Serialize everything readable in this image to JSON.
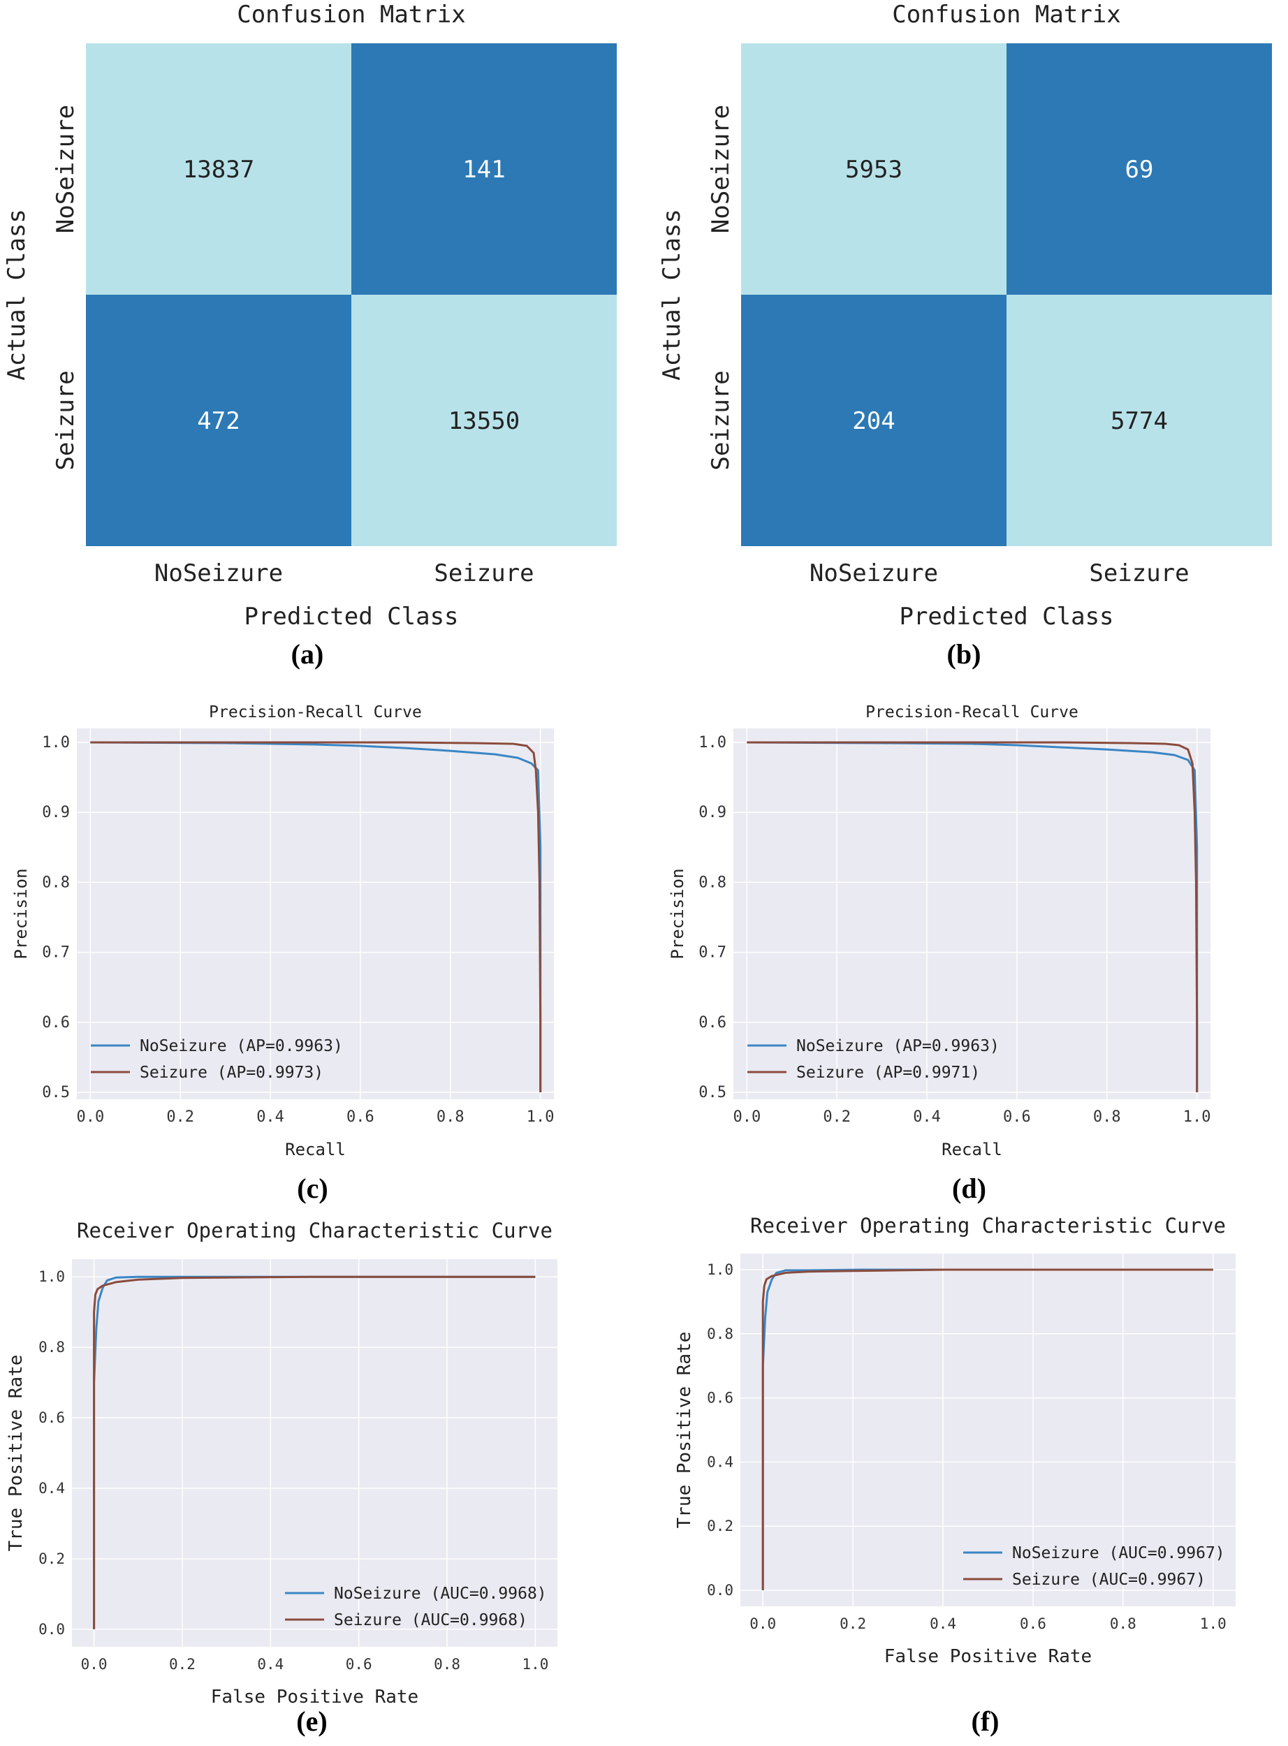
{
  "colors": {
    "cm_dark": "#2c79b5",
    "cm_light": "#b8e2e9",
    "plot_bg": "#eaeaf2",
    "grid": "#ffffff",
    "noseizure": "#3a86c4",
    "seizure": "#8a4b3c"
  },
  "chart_data": [
    {
      "id": "a",
      "type": "heatmap",
      "title": "Confusion Matrix",
      "xlabel": "Predicted Class",
      "ylabel": "Actual Class",
      "classes": [
        "NoSeizure",
        "Seizure"
      ],
      "matrix": [
        [
          13837,
          141
        ],
        [
          472,
          13550
        ]
      ],
      "panel_label": "(a)"
    },
    {
      "id": "b",
      "type": "heatmap",
      "title": "Confusion Matrix",
      "xlabel": "Predicted Class",
      "ylabel": "Actual Class",
      "classes": [
        "NoSeizure",
        "Seizure"
      ],
      "matrix": [
        [
          5953,
          69
        ],
        [
          204,
          5774
        ]
      ],
      "panel_label": "(b)"
    },
    {
      "id": "c",
      "type": "line",
      "title": "Precision-Recall Curve",
      "xlabel": "Recall",
      "ylabel": "Precision",
      "xlim": [
        -0.03,
        1.03
      ],
      "ylim": [
        0.49,
        1.02
      ],
      "xticks": [
        0.0,
        0.2,
        0.4,
        0.6,
        0.8,
        1.0
      ],
      "xtick_labels": [
        "0.0",
        "0.2",
        "0.4",
        "0.6",
        "0.8",
        "1.0"
      ],
      "yticks": [
        0.5,
        0.6,
        0.7,
        0.8,
        0.9,
        1.0
      ],
      "ytick_labels": [
        "0.5",
        "0.6",
        "0.7",
        "0.8",
        "0.9",
        "1.0"
      ],
      "legend_position": "lower-left",
      "series": [
        {
          "name": "NoSeizure (AP=0.9963)",
          "color_key": "noseizure",
          "x": [
            0.0,
            0.3,
            0.5,
            0.6,
            0.7,
            0.8,
            0.9,
            0.95,
            0.98,
            0.995,
            1.0,
            1.0,
            1.0
          ],
          "y": [
            1.0,
            0.999,
            0.997,
            0.995,
            0.992,
            0.988,
            0.983,
            0.978,
            0.97,
            0.96,
            0.85,
            0.7,
            0.5
          ]
        },
        {
          "name": "Seizure (AP=0.9973)",
          "color_key": "seizure",
          "x": [
            0.0,
            0.3,
            0.5,
            0.7,
            0.85,
            0.94,
            0.97,
            0.985,
            0.99,
            0.995,
            0.998,
            1.0,
            1.0
          ],
          "y": [
            1.0,
            1.0,
            1.0,
            1.0,
            0.999,
            0.998,
            0.995,
            0.985,
            0.96,
            0.9,
            0.8,
            0.6,
            0.5
          ]
        }
      ],
      "panel_label": "(c)"
    },
    {
      "id": "d",
      "type": "line",
      "title": "Precision-Recall Curve",
      "xlabel": "Recall",
      "ylabel": "Precision",
      "xlim": [
        -0.03,
        1.03
      ],
      "ylim": [
        0.49,
        1.02
      ],
      "xticks": [
        0.0,
        0.2,
        0.4,
        0.6,
        0.8,
        1.0
      ],
      "xtick_labels": [
        "0.0",
        "0.2",
        "0.4",
        "0.6",
        "0.8",
        "1.0"
      ],
      "yticks": [
        0.5,
        0.6,
        0.7,
        0.8,
        0.9,
        1.0
      ],
      "ytick_labels": [
        "0.5",
        "0.6",
        "0.7",
        "0.8",
        "0.9",
        "1.0"
      ],
      "legend_position": "lower-left",
      "series": [
        {
          "name": "NoSeizure (AP=0.9963)",
          "color_key": "noseizure",
          "x": [
            0.0,
            0.3,
            0.5,
            0.6,
            0.7,
            0.8,
            0.9,
            0.95,
            0.98,
            0.995,
            1.0,
            1.0,
            1.0
          ],
          "y": [
            1.0,
            0.999,
            0.998,
            0.996,
            0.993,
            0.99,
            0.986,
            0.982,
            0.975,
            0.96,
            0.85,
            0.7,
            0.5
          ]
        },
        {
          "name": "Seizure (AP=0.9971)",
          "color_key": "seizure",
          "x": [
            0.0,
            0.3,
            0.5,
            0.7,
            0.85,
            0.93,
            0.96,
            0.98,
            0.99,
            0.995,
            0.998,
            1.0,
            1.0
          ],
          "y": [
            1.0,
            1.0,
            1.0,
            1.0,
            0.999,
            0.998,
            0.996,
            0.99,
            0.97,
            0.9,
            0.8,
            0.6,
            0.5
          ]
        }
      ],
      "panel_label": "(d)"
    },
    {
      "id": "e",
      "type": "line",
      "title": "Receiver Operating Characteristic Curve",
      "xlabel": "False Positive Rate",
      "ylabel": "True Positive Rate",
      "xlim": [
        -0.05,
        1.05
      ],
      "ylim": [
        -0.05,
        1.05
      ],
      "xticks": [
        0.0,
        0.2,
        0.4,
        0.6,
        0.8,
        1.0
      ],
      "xtick_labels": [
        "0.0",
        "0.2",
        "0.4",
        "0.6",
        "0.8",
        "1.0"
      ],
      "yticks": [
        0.0,
        0.2,
        0.4,
        0.6,
        0.8,
        1.0
      ],
      "ytick_labels": [
        "0.0",
        "0.2",
        "0.4",
        "0.6",
        "0.8",
        "1.0"
      ],
      "legend_position": "lower-right",
      "series": [
        {
          "name": "NoSeizure (AUC=0.9968)",
          "color_key": "noseizure",
          "x": [
            0.0,
            0.0,
            0.005,
            0.01,
            0.02,
            0.03,
            0.05,
            0.1,
            0.2,
            0.5,
            1.0
          ],
          "y": [
            0.0,
            0.7,
            0.85,
            0.93,
            0.97,
            0.99,
            0.998,
            1.0,
            1.0,
            1.0,
            1.0
          ]
        },
        {
          "name": "Seizure (AUC=0.9968)",
          "color_key": "seizure",
          "x": [
            0.0,
            0.0,
            0.003,
            0.008,
            0.02,
            0.05,
            0.1,
            0.2,
            0.5,
            1.0
          ],
          "y": [
            0.0,
            0.9,
            0.95,
            0.965,
            0.975,
            0.985,
            0.992,
            0.997,
            1.0,
            1.0
          ]
        }
      ],
      "panel_label": "(e)"
    },
    {
      "id": "f",
      "type": "line",
      "title": "Receiver Operating Characteristic Curve",
      "xlabel": "False Positive Rate",
      "ylabel": "True Positive Rate",
      "xlim": [
        -0.05,
        1.05
      ],
      "ylim": [
        -0.05,
        1.05
      ],
      "xticks": [
        0.0,
        0.2,
        0.4,
        0.6,
        0.8,
        1.0
      ],
      "xtick_labels": [
        "0.0",
        "0.2",
        "0.4",
        "0.6",
        "0.8",
        "1.0"
      ],
      "yticks": [
        0.0,
        0.2,
        0.4,
        0.6,
        0.8,
        1.0
      ],
      "ytick_labels": [
        "0.0",
        "0.2",
        "0.4",
        "0.6",
        "0.8",
        "1.0"
      ],
      "legend_position": "lower-right",
      "series": [
        {
          "name": "NoSeizure (AUC=0.9967)",
          "color_key": "noseizure",
          "x": [
            0.0,
            0.0,
            0.005,
            0.01,
            0.02,
            0.03,
            0.05,
            0.1,
            0.22,
            0.5,
            1.0
          ],
          "y": [
            0.0,
            0.7,
            0.85,
            0.93,
            0.97,
            0.99,
            0.998,
            0.998,
            1.0,
            1.0,
            1.0
          ]
        },
        {
          "name": "Seizure (AUC=0.9967)",
          "color_key": "seizure",
          "x": [
            0.0,
            0.0,
            0.003,
            0.008,
            0.02,
            0.05,
            0.1,
            0.2,
            0.4,
            0.5,
            1.0
          ],
          "y": [
            0.0,
            0.9,
            0.95,
            0.97,
            0.98,
            0.99,
            0.994,
            0.996,
            1.0,
            1.0,
            1.0
          ]
        }
      ],
      "panel_label": "(f)"
    }
  ]
}
